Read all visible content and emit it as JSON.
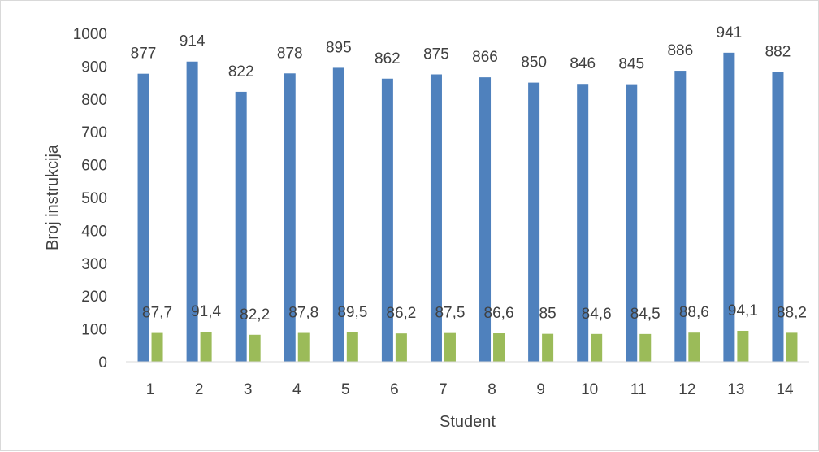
{
  "chart_data": {
    "type": "bar",
    "xlabel": "Student",
    "ylabel": "Broj instrukcija",
    "categories": [
      "1",
      "2",
      "3",
      "4",
      "5",
      "6",
      "7",
      "8",
      "9",
      "10",
      "11",
      "12",
      "13",
      "14"
    ],
    "ylim": [
      0,
      1000
    ],
    "yticks": [
      0,
      100,
      200,
      300,
      400,
      500,
      600,
      700,
      800,
      900,
      1000
    ],
    "grid": false,
    "legend": "none",
    "series": [
      {
        "values": [
          877,
          914,
          822,
          878,
          895,
          862,
          875,
          866,
          850,
          846,
          845,
          886,
          941,
          882
        ],
        "labels": [
          "877",
          "914",
          "822",
          "878",
          "895",
          "862",
          "875",
          "866",
          "850",
          "846",
          "845",
          "886",
          "941",
          "882"
        ],
        "color": "#4f81bd"
      },
      {
        "values": [
          87.7,
          91.4,
          82.2,
          87.8,
          89.5,
          86.2,
          87.5,
          86.6,
          85,
          84.6,
          84.5,
          88.6,
          94.1,
          88.2
        ],
        "labels": [
          "87,7",
          "91,4",
          "82,2",
          "87,8",
          "89,5",
          "86,2",
          "87,5",
          "86,6",
          "85",
          "84,6",
          "84,5",
          "88,6",
          "94,1",
          "88,2"
        ],
        "color": "#9bbb59"
      }
    ]
  }
}
